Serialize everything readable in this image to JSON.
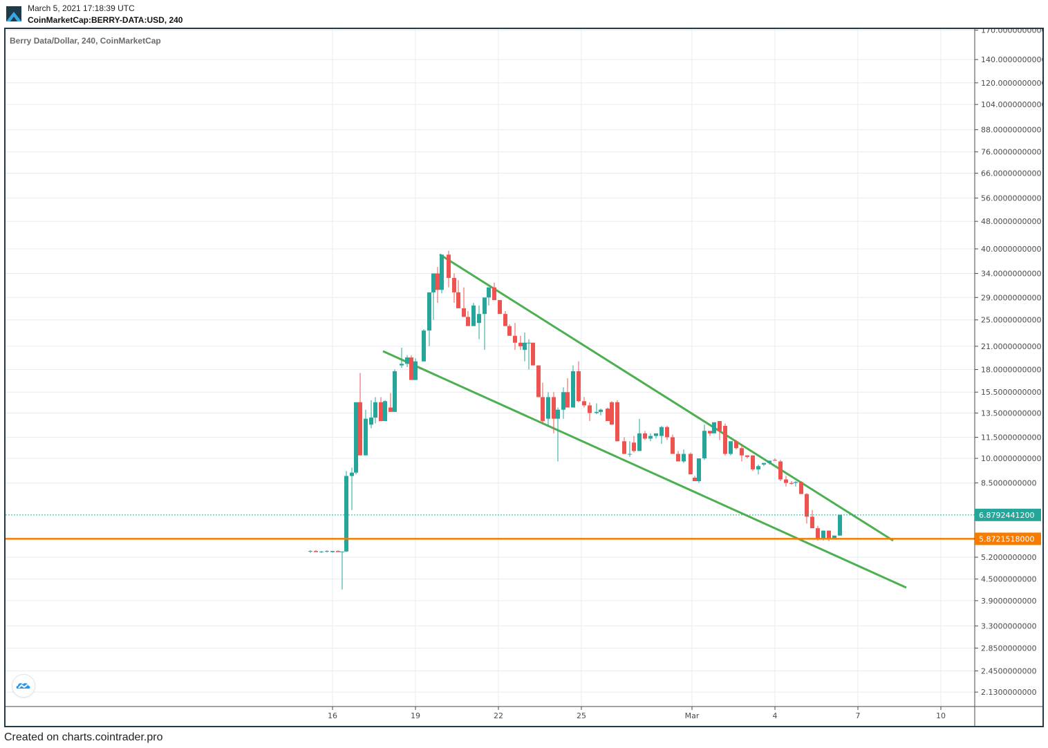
{
  "header": {
    "timestamp": "March 5, 2021 17:18:39 UTC",
    "symbol": "CoinMarketCap:BERRY-DATA:USD, 240",
    "logo_icon": "cointrader-logo-icon"
  },
  "legend": {
    "title": "Berry Data/Dollar, 240, CoinMarketCap"
  },
  "footer": {
    "text": "Created on charts.cointrader.pro"
  },
  "colors": {
    "up": "#26a69a",
    "down": "#ef5350",
    "trendline": "#4caf50",
    "support": "#f57c00",
    "last_price": "#26a69a",
    "grid": "#e6ecf0",
    "frame": "#1f3a4b"
  },
  "price_axis": {
    "ticks": [
      "170.0000000000",
      "140.0000000000",
      "120.0000000000",
      "104.0000000000",
      "88.0000000000",
      "76.0000000000",
      "66.0000000000",
      "56.0000000000",
      "48.0000000000",
      "40.0000000000",
      "34.0000000000",
      "29.0000000000",
      "25.0000000000",
      "21.0000000000",
      "18.0000000000",
      "15.5000000000",
      "13.5000000000",
      "11.5000000000",
      "10.0000000000",
      "8.5000000000",
      "5.2000000000",
      "4.5000000000",
      "3.9000000000",
      "3.3000000000",
      "2.8500000000",
      "2.4500000000",
      "2.1300000000"
    ],
    "last_price_label": "6.8792441200",
    "support_label": "5.8721518000"
  },
  "time_axis": {
    "ticks": [
      "16",
      "19",
      "22",
      "25",
      "Mar",
      "4",
      "7",
      "10"
    ]
  },
  "chart_data": {
    "type": "candlestick",
    "title": "Berry Data/Dollar, 240, CoinMarketCap",
    "symbol": "CoinMarketCap:BERRY-DATA:USD",
    "interval": "240",
    "xlabel": "",
    "ylabel": "",
    "y_scale": "log",
    "ylim": [
      2.0,
      175
    ],
    "x_tick_labels": [
      "16",
      "19",
      "22",
      "25",
      "Mar",
      "4",
      "7",
      "10"
    ],
    "y_tick_labels": [
      170,
      140,
      120,
      104,
      88,
      76,
      66,
      56,
      48,
      40,
      34,
      29,
      25,
      21,
      18,
      15.5,
      13.5,
      11.5,
      10,
      8.5,
      5.2,
      4.5,
      3.9,
      3.3,
      2.85,
      2.45,
      2.13
    ],
    "last_price": 6.87924412,
    "horizontal_lines": [
      {
        "name": "support",
        "value": 5.8721518,
        "color": "#f57c00"
      }
    ],
    "trendlines": [
      {
        "name": "upper-falling-wedge-line",
        "from": {
          "date": "Feb 19",
          "price": 38.5
        },
        "to": {
          "date": "Mar 8",
          "price": 5.85
        }
      },
      {
        "name": "lower-falling-wedge-line",
        "from": {
          "date": "Feb 17",
          "price": 20.5
        },
        "to": {
          "date": "Mar 9",
          "price": 4.2
        }
      }
    ],
    "pattern": "falling wedge",
    "approx_price_path": [
      {
        "date": "Feb 15",
        "close": 5.4
      },
      {
        "date": "Feb 16",
        "close": 5.4,
        "low": 4.2
      },
      {
        "date": "Feb 16.5",
        "close": 9.0
      },
      {
        "date": "Feb 17",
        "close": 14.5,
        "high": 17.5
      },
      {
        "date": "Feb 18",
        "close": 14.0
      },
      {
        "date": "Feb 18.5",
        "close": 18.2
      },
      {
        "date": "Feb 19",
        "close": 19.0,
        "high": 21.0
      },
      {
        "date": "Feb 19.5",
        "close": 30.0
      },
      {
        "date": "Feb 20",
        "close": 38.5,
        "high": 39.0
      },
      {
        "date": "Feb 20.5",
        "close": 25.5
      },
      {
        "date": "Feb 21",
        "close": 28.0
      },
      {
        "date": "Feb 22",
        "close": 27.0
      },
      {
        "date": "Feb 23",
        "close": 15.0
      },
      {
        "date": "Feb 23.5",
        "close": 13.0,
        "low": 9.8
      },
      {
        "date": "Feb 24",
        "close": 15.0
      },
      {
        "date": "Feb 25",
        "close": 14.0
      },
      {
        "date": "Feb 26",
        "close": 11.2
      },
      {
        "date": "Feb 27",
        "close": 11.6
      },
      {
        "date": "Feb 28",
        "close": 9.0
      },
      {
        "date": "Mar 1",
        "close": 12.5
      },
      {
        "date": "Mar 1.5",
        "close": 10.3
      },
      {
        "date": "Mar 2",
        "close": 10.0
      },
      {
        "date": "Mar 3",
        "close": 8.8
      },
      {
        "date": "Mar 4",
        "close": 6.3
      },
      {
        "date": "Mar 4.5",
        "close": 5.9
      },
      {
        "date": "Mar 5",
        "close": 6.88
      }
    ]
  }
}
